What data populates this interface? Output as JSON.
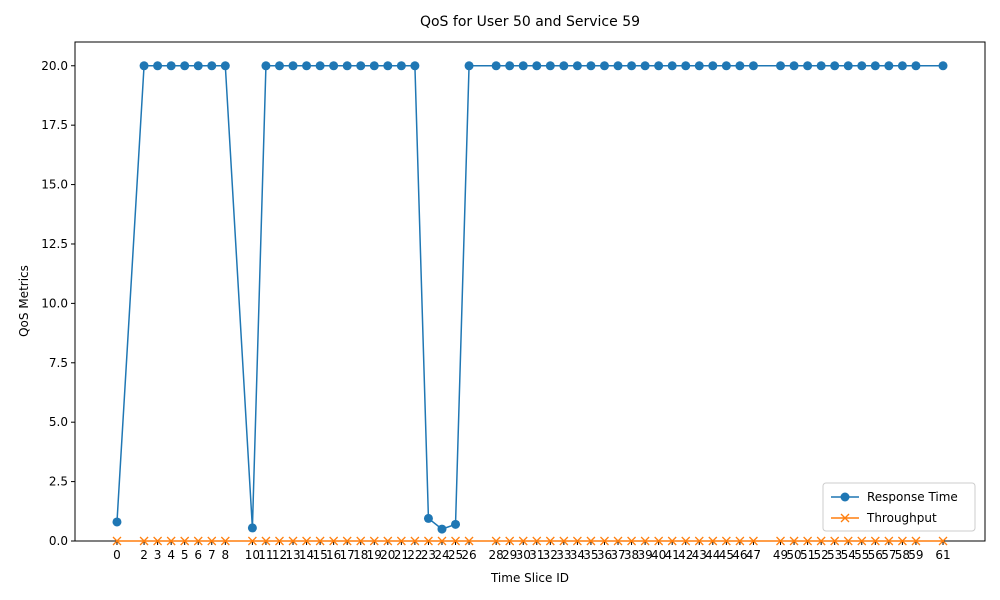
{
  "chart_data": {
    "type": "line",
    "title": "QoS for User 50 and Service 59",
    "xlabel": "Time Slice ID",
    "ylabel": "QoS Metrics",
    "ylim": [
      0,
      21
    ],
    "yticks": [
      "0.0",
      "2.5",
      "5.0",
      "7.5",
      "10.0",
      "12.5",
      "15.0",
      "17.5",
      "20.0"
    ],
    "x": [
      0,
      2,
      3,
      4,
      5,
      6,
      7,
      8,
      10,
      11,
      12,
      13,
      14,
      15,
      16,
      17,
      18,
      19,
      20,
      21,
      22,
      23,
      24,
      25,
      26,
      28,
      29,
      30,
      31,
      32,
      33,
      34,
      35,
      36,
      37,
      38,
      39,
      40,
      41,
      42,
      43,
      44,
      45,
      46,
      47,
      49,
      50,
      51,
      52,
      53,
      54,
      55,
      56,
      57,
      58,
      59,
      61
    ],
    "legend_position": "lower-right",
    "grid": false,
    "series": [
      {
        "name": "Response Time",
        "color": "#1f77b4",
        "marker": "circle",
        "values": [
          0.8,
          20,
          20,
          20,
          20,
          20,
          20,
          20,
          0.55,
          20,
          20,
          20,
          20,
          20,
          20,
          20,
          20,
          20,
          20,
          20,
          20,
          0.95,
          0.5,
          0.7,
          20,
          20,
          20,
          20,
          20,
          20,
          20,
          20,
          20,
          20,
          20,
          20,
          20,
          20,
          20,
          20,
          20,
          20,
          20,
          20,
          20,
          20,
          20,
          20,
          20,
          20,
          20,
          20,
          20,
          20,
          20,
          20,
          20
        ]
      },
      {
        "name": "Throughput",
        "color": "#ff7f0e",
        "marker": "x",
        "values": [
          0,
          0,
          0,
          0,
          0,
          0,
          0,
          0,
          0,
          0,
          0,
          0,
          0,
          0,
          0,
          0,
          0,
          0,
          0,
          0,
          0,
          0,
          0,
          0,
          0,
          0,
          0,
          0,
          0,
          0,
          0,
          0,
          0,
          0,
          0,
          0,
          0,
          0,
          0,
          0,
          0,
          0,
          0,
          0,
          0,
          0,
          0,
          0,
          0,
          0,
          0,
          0,
          0,
          0,
          0,
          0,
          0
        ]
      }
    ]
  }
}
